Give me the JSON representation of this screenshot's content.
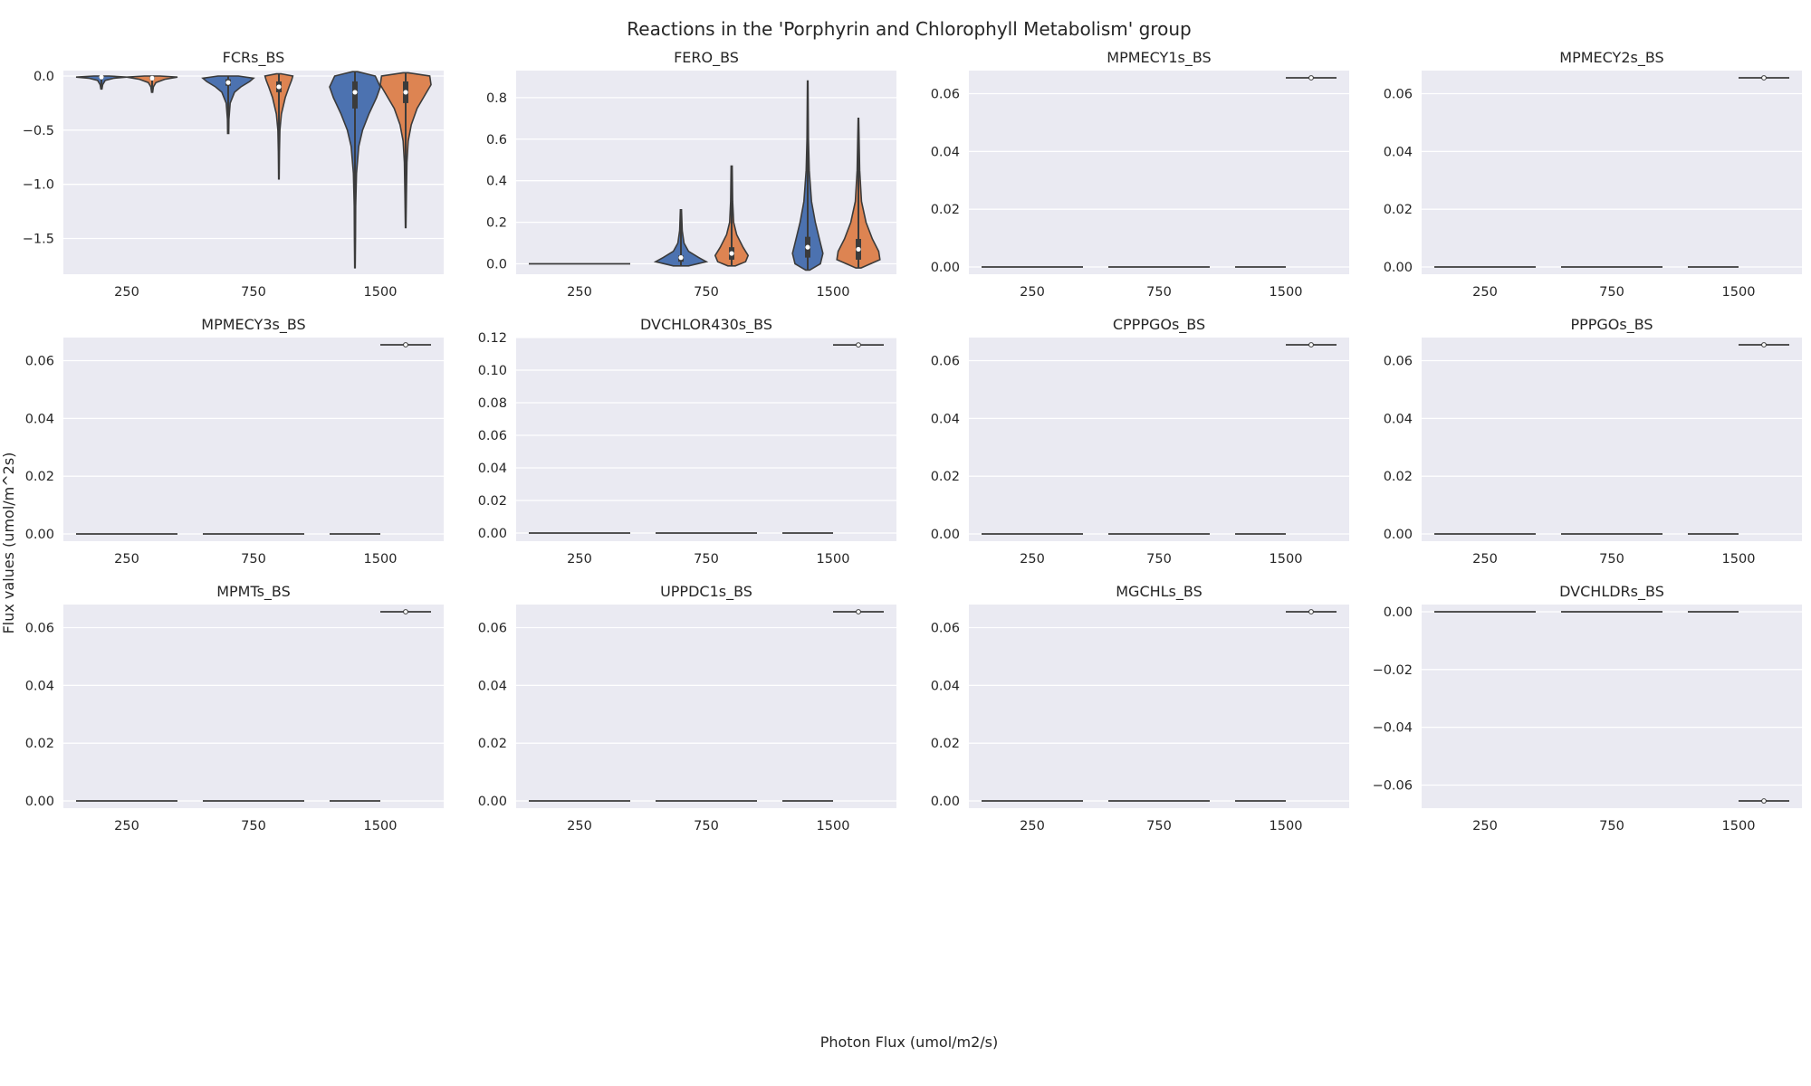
{
  "figure": {
    "title": "Reactions in the 'Porphyrin and Chlorophyll Metabolism' group",
    "xlabel": "Photon Flux (umol/m2/s)",
    "ylabel": "Flux values (umol/m^2s)"
  },
  "colors": {
    "background": "#eaeaf2",
    "grid": "#ffffff",
    "series1": "#4c72b0",
    "series2": "#dd8452",
    "line": "#3b3b3b"
  },
  "chart_data": [
    {
      "type": "violin",
      "title": "FCRs_BS",
      "categories": [
        "250",
        "750",
        "1500"
      ],
      "ylim": [
        -1.83,
        0.05
      ],
      "yticks": [
        0.0,
        -0.5,
        -1.0,
        -1.5
      ],
      "ytick_labels": [
        "0.0",
        "−0.5",
        "−1.0",
        "−1.5"
      ],
      "grid": true,
      "violins": [
        {
          "cat": 0,
          "series": 0,
          "min": -0.12,
          "max": 0.0,
          "median": -0.01,
          "q1": -0.02,
          "q3": 0.0,
          "profile": [
            [
              0.0,
              0.3
            ],
            [
              -0.01,
              1.0
            ],
            [
              -0.02,
              0.5
            ],
            [
              -0.04,
              0.15
            ],
            [
              -0.08,
              0.05
            ],
            [
              -0.12,
              0.02
            ]
          ]
        },
        {
          "cat": 0,
          "series": 1,
          "min": -0.15,
          "max": 0.0,
          "median": -0.02,
          "q1": -0.03,
          "q3": -0.01,
          "profile": [
            [
              0.0,
              0.3
            ],
            [
              -0.01,
              1.0
            ],
            [
              -0.03,
              0.5
            ],
            [
              -0.06,
              0.15
            ],
            [
              -0.1,
              0.05
            ],
            [
              -0.15,
              0.02
            ]
          ]
        },
        {
          "cat": 1,
          "series": 0,
          "min": -0.53,
          "max": 0.0,
          "median": -0.06,
          "q1": -0.09,
          "q3": -0.03,
          "profile": [
            [
              0.0,
              0.4
            ],
            [
              -0.02,
              1.0
            ],
            [
              -0.05,
              0.85
            ],
            [
              -0.1,
              0.5
            ],
            [
              -0.15,
              0.25
            ],
            [
              -0.25,
              0.08
            ],
            [
              -0.4,
              0.03
            ],
            [
              -0.53,
              0.02
            ]
          ]
        },
        {
          "cat": 1,
          "series": 1,
          "min": -0.95,
          "max": 0.02,
          "median": -0.1,
          "q1": -0.15,
          "q3": -0.05,
          "profile": [
            [
              0.02,
              0.1
            ],
            [
              0.0,
              0.55
            ],
            [
              -0.04,
              0.5
            ],
            [
              -0.1,
              0.4
            ],
            [
              -0.2,
              0.25
            ],
            [
              -0.35,
              0.1
            ],
            [
              -0.5,
              0.04
            ],
            [
              -0.7,
              0.02
            ],
            [
              -0.95,
              0.01
            ]
          ]
        },
        {
          "cat": 2,
          "series": 0,
          "min": -1.77,
          "max": 0.04,
          "median": -0.15,
          "q1": -0.3,
          "q3": -0.05,
          "profile": [
            [
              0.04,
              0.1
            ],
            [
              0.0,
              0.8
            ],
            [
              -0.1,
              1.0
            ],
            [
              -0.2,
              0.85
            ],
            [
              -0.35,
              0.55
            ],
            [
              -0.5,
              0.3
            ],
            [
              -0.65,
              0.15
            ],
            [
              -0.9,
              0.06
            ],
            [
              -1.2,
              0.03
            ],
            [
              -1.5,
              0.02
            ],
            [
              -1.77,
              0.01
            ]
          ]
        },
        {
          "cat": 2,
          "series": 1,
          "min": -1.4,
          "max": 0.03,
          "median": -0.15,
          "q1": -0.25,
          "q3": -0.05,
          "profile": [
            [
              0.03,
              0.1
            ],
            [
              0.0,
              0.95
            ],
            [
              -0.08,
              1.0
            ],
            [
              -0.18,
              0.75
            ],
            [
              -0.3,
              0.45
            ],
            [
              -0.45,
              0.22
            ],
            [
              -0.6,
              0.1
            ],
            [
              -0.8,
              0.05
            ],
            [
              -1.1,
              0.03
            ],
            [
              -1.4,
              0.01
            ]
          ]
        }
      ]
    },
    {
      "type": "violin",
      "title": "FERO_BS",
      "categories": [
        "250",
        "750",
        "1500"
      ],
      "ylim": [
        -0.05,
        0.93
      ],
      "yticks": [
        0.0,
        0.2,
        0.4,
        0.6,
        0.8
      ],
      "ytick_labels": [
        "0.0",
        "0.2",
        "0.4",
        "0.6",
        "0.8"
      ],
      "grid": true,
      "flat": [
        {
          "x0": -0.4,
          "x1": 0.4,
          "y": 0.0
        }
      ],
      "violins": [
        {
          "cat": 1,
          "series": 0,
          "min": -0.01,
          "max": 0.26,
          "median": 0.03,
          "q1": 0.01,
          "q3": 0.04,
          "profile": [
            [
              -0.01,
              0.3
            ],
            [
              0.01,
              1.0
            ],
            [
              0.03,
              0.7
            ],
            [
              0.06,
              0.3
            ],
            [
              0.1,
              0.12
            ],
            [
              0.16,
              0.05
            ],
            [
              0.26,
              0.02
            ]
          ]
        },
        {
          "cat": 1,
          "series": 1,
          "min": -0.01,
          "max": 0.47,
          "median": 0.05,
          "q1": 0.02,
          "q3": 0.08,
          "profile": [
            [
              -0.01,
              0.15
            ],
            [
              0.01,
              0.55
            ],
            [
              0.04,
              0.65
            ],
            [
              0.08,
              0.45
            ],
            [
              0.14,
              0.2
            ],
            [
              0.2,
              0.08
            ],
            [
              0.3,
              0.04
            ],
            [
              0.47,
              0.02
            ]
          ]
        },
        {
          "cat": 2,
          "series": 0,
          "min": -0.03,
          "max": 0.88,
          "median": 0.08,
          "q1": 0.03,
          "q3": 0.13,
          "profile": [
            [
              -0.03,
              0.08
            ],
            [
              0.0,
              0.5
            ],
            [
              0.05,
              0.6
            ],
            [
              0.1,
              0.5
            ],
            [
              0.2,
              0.3
            ],
            [
              0.3,
              0.15
            ],
            [
              0.45,
              0.06
            ],
            [
              0.6,
              0.03
            ],
            [
              0.88,
              0.01
            ]
          ]
        },
        {
          "cat": 2,
          "series": 1,
          "min": -0.02,
          "max": 0.7,
          "median": 0.07,
          "q1": 0.02,
          "q3": 0.12,
          "profile": [
            [
              -0.02,
              0.1
            ],
            [
              0.02,
              0.85
            ],
            [
              0.06,
              0.8
            ],
            [
              0.12,
              0.55
            ],
            [
              0.2,
              0.3
            ],
            [
              0.3,
              0.12
            ],
            [
              0.45,
              0.05
            ],
            [
              0.7,
              0.01
            ]
          ]
        }
      ]
    },
    {
      "type": "violin",
      "title": "MPMECY1s_BS",
      "categories": [
        "250",
        "750",
        "1500"
      ],
      "ylim": [
        -0.0025,
        0.068
      ],
      "yticks": [
        0.0,
        0.02,
        0.04,
        0.06
      ],
      "ytick_labels": [
        "0.00",
        "0.02",
        "0.04",
        "0.06"
      ],
      "grid": true,
      "flat": [
        {
          "x0": -0.4,
          "x1": 0.4,
          "y": 0.0
        },
        {
          "x0": 0.6,
          "x1": 1.4,
          "y": 0.0
        },
        {
          "x0": 1.6,
          "x1": 2.0,
          "y": 0.0
        },
        {
          "x0": 2.0,
          "x1": 2.4,
          "y": 0.0655
        }
      ],
      "points": [
        {
          "x": 2.2,
          "y": 0.0655
        }
      ]
    },
    {
      "type": "violin",
      "title": "MPMECY2s_BS",
      "categories": [
        "250",
        "750",
        "1500"
      ],
      "ylim": [
        -0.0025,
        0.068
      ],
      "yticks": [
        0.0,
        0.02,
        0.04,
        0.06
      ],
      "ytick_labels": [
        "0.00",
        "0.02",
        "0.04",
        "0.06"
      ],
      "grid": true,
      "flat": [
        {
          "x0": -0.4,
          "x1": 0.4,
          "y": 0.0
        },
        {
          "x0": 0.6,
          "x1": 1.4,
          "y": 0.0
        },
        {
          "x0": 1.6,
          "x1": 2.0,
          "y": 0.0
        },
        {
          "x0": 2.0,
          "x1": 2.4,
          "y": 0.0655
        }
      ],
      "points": [
        {
          "x": 2.2,
          "y": 0.0655
        }
      ]
    },
    {
      "type": "violin",
      "title": "MPMECY3s_BS",
      "categories": [
        "250",
        "750",
        "1500"
      ],
      "ylim": [
        -0.0025,
        0.068
      ],
      "yticks": [
        0.0,
        0.02,
        0.04,
        0.06
      ],
      "ytick_labels": [
        "0.00",
        "0.02",
        "0.04",
        "0.06"
      ],
      "grid": true,
      "flat": [
        {
          "x0": -0.4,
          "x1": 0.4,
          "y": 0.0
        },
        {
          "x0": 0.6,
          "x1": 1.4,
          "y": 0.0
        },
        {
          "x0": 1.6,
          "x1": 2.0,
          "y": 0.0
        },
        {
          "x0": 2.0,
          "x1": 2.4,
          "y": 0.0655
        }
      ],
      "points": [
        {
          "x": 2.2,
          "y": 0.0655
        }
      ]
    },
    {
      "type": "violin",
      "title": "DVCHLOR430s_BS",
      "categories": [
        "250",
        "750",
        "1500"
      ],
      "ylim": [
        -0.005,
        0.12
      ],
      "yticks": [
        0.0,
        0.02,
        0.04,
        0.06,
        0.08,
        0.1,
        0.12
      ],
      "ytick_labels": [
        "0.00",
        "0.02",
        "0.04",
        "0.06",
        "0.08",
        "0.10",
        "0.12"
      ],
      "grid": true,
      "flat": [
        {
          "x0": -0.4,
          "x1": 0.4,
          "y": 0.0
        },
        {
          "x0": 0.6,
          "x1": 1.4,
          "y": 0.0
        },
        {
          "x0": 1.6,
          "x1": 2.0,
          "y": 0.0
        },
        {
          "x0": 2.0,
          "x1": 2.4,
          "y": 0.1155
        }
      ],
      "points": [
        {
          "x": 2.2,
          "y": 0.1155
        }
      ]
    },
    {
      "type": "violin",
      "title": "CPPPGOs_BS",
      "categories": [
        "250",
        "750",
        "1500"
      ],
      "ylim": [
        -0.0025,
        0.068
      ],
      "yticks": [
        0.0,
        0.02,
        0.04,
        0.06
      ],
      "ytick_labels": [
        "0.00",
        "0.02",
        "0.04",
        "0.06"
      ],
      "grid": true,
      "flat": [
        {
          "x0": -0.4,
          "x1": 0.4,
          "y": 0.0
        },
        {
          "x0": 0.6,
          "x1": 1.4,
          "y": 0.0
        },
        {
          "x0": 1.6,
          "x1": 2.0,
          "y": 0.0
        },
        {
          "x0": 2.0,
          "x1": 2.4,
          "y": 0.0655
        }
      ],
      "points": [
        {
          "x": 2.2,
          "y": 0.0655
        }
      ]
    },
    {
      "type": "violin",
      "title": "PPPGOs_BS",
      "categories": [
        "250",
        "750",
        "1500"
      ],
      "ylim": [
        -0.0025,
        0.068
      ],
      "yticks": [
        0.0,
        0.02,
        0.04,
        0.06
      ],
      "ytick_labels": [
        "0.00",
        "0.02",
        "0.04",
        "0.06"
      ],
      "grid": true,
      "flat": [
        {
          "x0": -0.4,
          "x1": 0.4,
          "y": 0.0
        },
        {
          "x0": 0.6,
          "x1": 1.4,
          "y": 0.0
        },
        {
          "x0": 1.6,
          "x1": 2.0,
          "y": 0.0
        },
        {
          "x0": 2.0,
          "x1": 2.4,
          "y": 0.0655
        }
      ],
      "points": [
        {
          "x": 2.2,
          "y": 0.0655
        }
      ]
    },
    {
      "type": "violin",
      "title": "MPMTs_BS",
      "categories": [
        "250",
        "750",
        "1500"
      ],
      "ylim": [
        -0.0025,
        0.068
      ],
      "yticks": [
        0.0,
        0.02,
        0.04,
        0.06
      ],
      "ytick_labels": [
        "0.00",
        "0.02",
        "0.04",
        "0.06"
      ],
      "grid": true,
      "flat": [
        {
          "x0": -0.4,
          "x1": 0.4,
          "y": 0.0
        },
        {
          "x0": 0.6,
          "x1": 1.4,
          "y": 0.0
        },
        {
          "x0": 1.6,
          "x1": 2.0,
          "y": 0.0
        },
        {
          "x0": 2.0,
          "x1": 2.4,
          "y": 0.0655
        }
      ],
      "points": [
        {
          "x": 2.2,
          "y": 0.0655
        }
      ]
    },
    {
      "type": "violin",
      "title": "UPPDC1s_BS",
      "categories": [
        "250",
        "750",
        "1500"
      ],
      "ylim": [
        -0.0025,
        0.068
      ],
      "yticks": [
        0.0,
        0.02,
        0.04,
        0.06
      ],
      "ytick_labels": [
        "0.00",
        "0.02",
        "0.04",
        "0.06"
      ],
      "grid": true,
      "flat": [
        {
          "x0": -0.4,
          "x1": 0.4,
          "y": 0.0
        },
        {
          "x0": 0.6,
          "x1": 1.4,
          "y": 0.0
        },
        {
          "x0": 1.6,
          "x1": 2.0,
          "y": 0.0
        },
        {
          "x0": 2.0,
          "x1": 2.4,
          "y": 0.0655
        }
      ],
      "points": [
        {
          "x": 2.2,
          "y": 0.0655
        }
      ]
    },
    {
      "type": "violin",
      "title": "MGCHLs_BS",
      "categories": [
        "250",
        "750",
        "1500"
      ],
      "ylim": [
        -0.0025,
        0.068
      ],
      "yticks": [
        0.0,
        0.02,
        0.04,
        0.06
      ],
      "ytick_labels": [
        "0.00",
        "0.02",
        "0.04",
        "0.06"
      ],
      "grid": true,
      "flat": [
        {
          "x0": -0.4,
          "x1": 0.4,
          "y": 0.0
        },
        {
          "x0": 0.6,
          "x1": 1.4,
          "y": 0.0
        },
        {
          "x0": 1.6,
          "x1": 2.0,
          "y": 0.0
        },
        {
          "x0": 2.0,
          "x1": 2.4,
          "y": 0.0655
        }
      ],
      "points": [
        {
          "x": 2.2,
          "y": 0.0655
        }
      ]
    },
    {
      "type": "violin",
      "title": "DVCHLDRs_BS",
      "categories": [
        "250",
        "750",
        "1500"
      ],
      "ylim": [
        -0.068,
        0.0025
      ],
      "yticks": [
        0.0,
        -0.02,
        -0.04,
        -0.06
      ],
      "ytick_labels": [
        "0.00",
        "−0.02",
        "−0.04",
        "−0.06"
      ],
      "grid": true,
      "flat": [
        {
          "x0": -0.4,
          "x1": 0.4,
          "y": 0.0
        },
        {
          "x0": 0.6,
          "x1": 1.4,
          "y": 0.0
        },
        {
          "x0": 1.6,
          "x1": 2.0,
          "y": 0.0
        },
        {
          "x0": 2.0,
          "x1": 2.4,
          "y": -0.0655
        }
      ],
      "points": [
        {
          "x": 2.2,
          "y": -0.0655
        }
      ]
    }
  ]
}
